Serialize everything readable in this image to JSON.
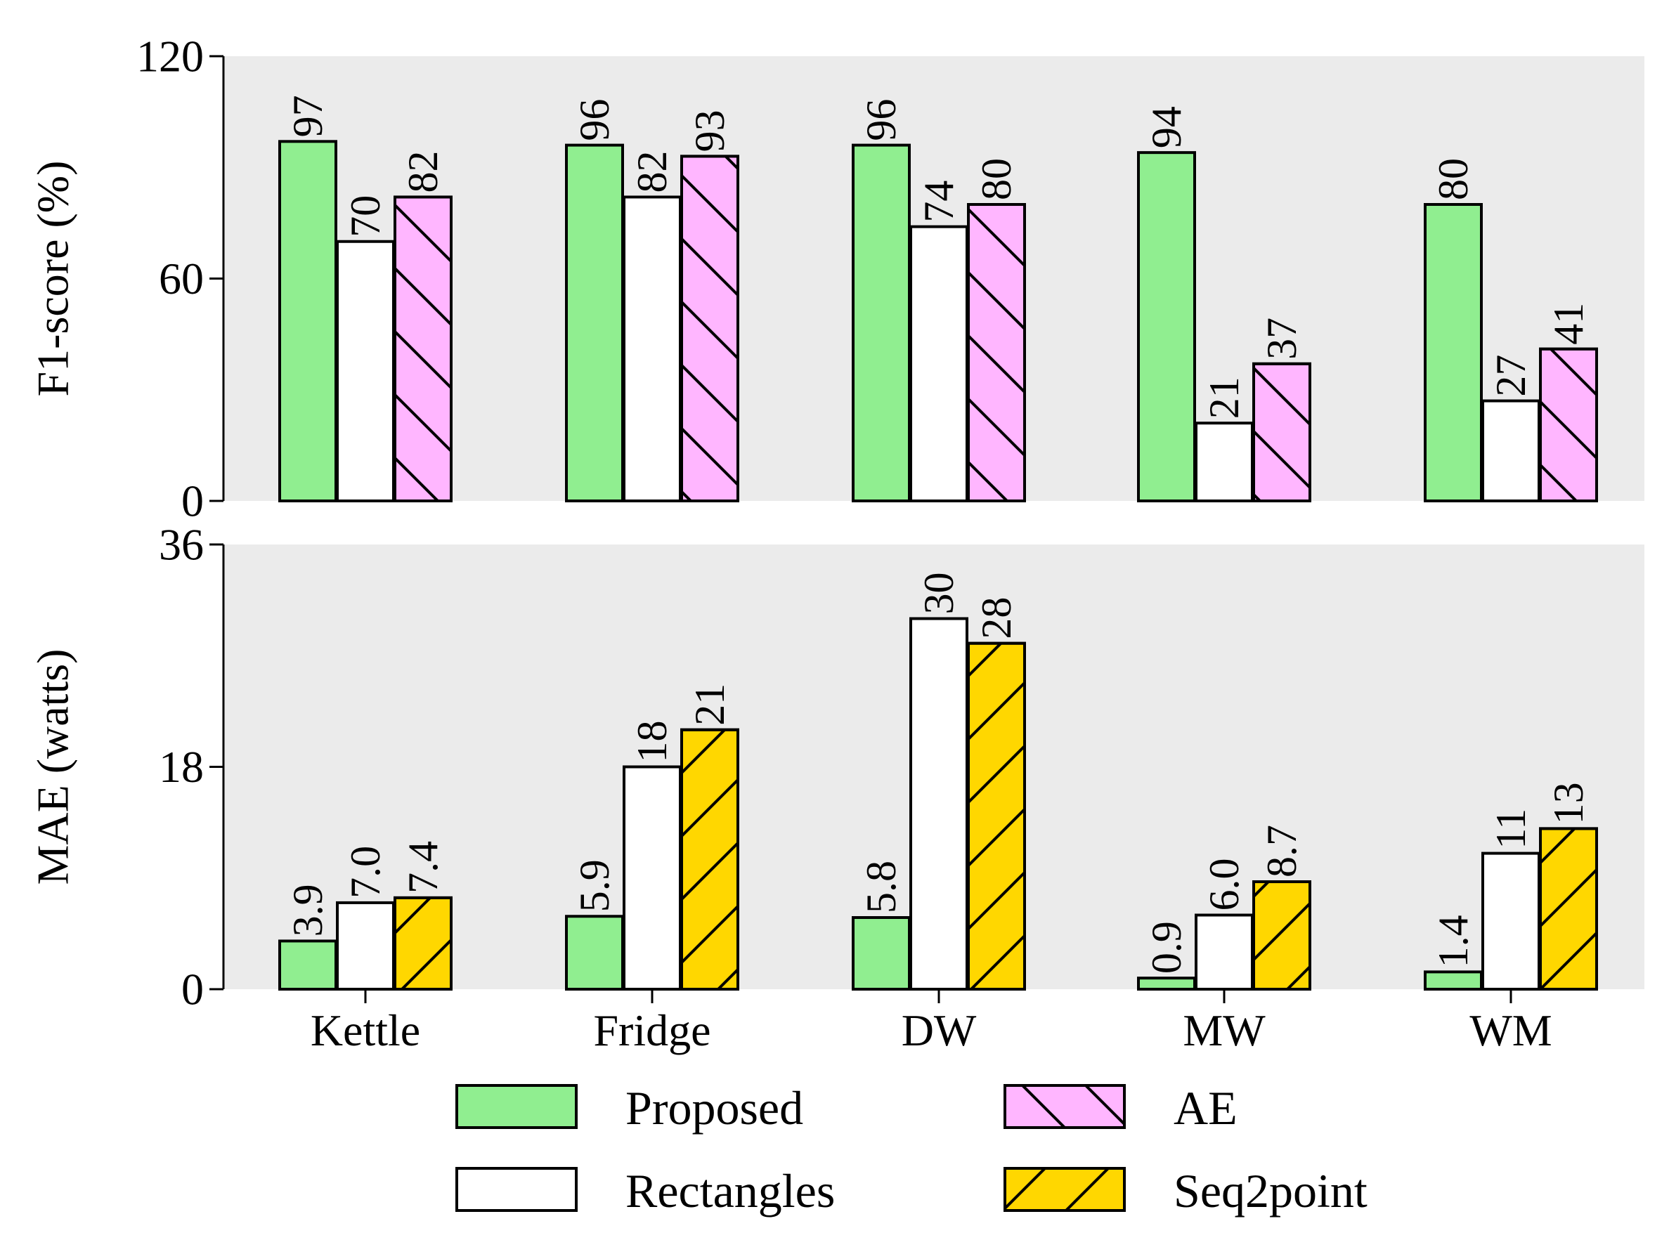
{
  "chart_data": [
    {
      "type": "bar",
      "categories": [
        "Kettle",
        "Fridge",
        "DW",
        "MW",
        "WM"
      ],
      "ylabel": "F1-score (%)",
      "ylim": [
        0,
        120
      ],
      "yticks": [
        0,
        60,
        120
      ],
      "series": [
        {
          "name": "Proposed",
          "values": [
            97,
            96,
            96,
            94,
            80
          ],
          "labels": [
            "97",
            "96",
            "96",
            "94",
            "80"
          ]
        },
        {
          "name": "Rectangles",
          "values": [
            70,
            82,
            74,
            21,
            27
          ],
          "labels": [
            "70",
            "82",
            "74",
            "21",
            "27"
          ]
        },
        {
          "name": "AE",
          "values": [
            82,
            93,
            80,
            37,
            41
          ],
          "labels": [
            "82",
            "93",
            "80",
            "37",
            "41"
          ]
        }
      ]
    },
    {
      "type": "bar",
      "categories": [
        "Kettle",
        "Fridge",
        "DW",
        "MW",
        "WM"
      ],
      "ylabel": "MAE (watts)",
      "ylim": [
        0,
        36
      ],
      "yticks": [
        0,
        18,
        36
      ],
      "series": [
        {
          "name": "Proposed",
          "values": [
            3.9,
            5.9,
            5.8,
            0.9,
            1.4
          ],
          "labels": [
            "3.9",
            "5.9",
            "5.8",
            "0.9",
            "1.4"
          ]
        },
        {
          "name": "Rectangles",
          "values": [
            7.0,
            18,
            30,
            6.0,
            11
          ],
          "labels": [
            "7.0",
            "18",
            "30",
            "6.0",
            "11"
          ]
        },
        {
          "name": "Seq2point",
          "values": [
            7.4,
            21,
            28,
            8.7,
            13
          ],
          "labels": [
            "7.4",
            "21",
            "28",
            "8.7",
            "13"
          ]
        }
      ]
    }
  ],
  "legend": {
    "position": "bottom",
    "items": [
      {
        "name": "Proposed",
        "color": "#90EE90",
        "hatch": "none"
      },
      {
        "name": "AE",
        "color": "#FFB6FF",
        "hatch": "backslash"
      },
      {
        "name": "Rectangles",
        "color": "#FFFFFF",
        "hatch": "none"
      },
      {
        "name": "Seq2point",
        "color": "#FFD700",
        "hatch": "slash"
      }
    ]
  },
  "colors": {
    "Proposed": "#90EE90",
    "Rectangles": "#FFFFFF",
    "AE": "#FFB6FF",
    "Seq2point": "#FFD700",
    "panel_bg": "#EBEBEB"
  }
}
